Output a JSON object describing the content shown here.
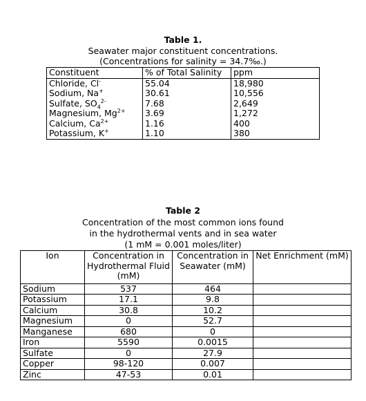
{
  "table1": {
    "title": "Table 1.",
    "subtitle": "Seawater major constituent concentrations.",
    "note": "(Concentrations for salinity = 34.7‰.)",
    "headers": [
      "Constituent",
      "% of Total Salinity",
      "ppm"
    ],
    "rows": [
      {
        "name": "Chloride, Cl",
        "charge": "-",
        "pct": "55.04",
        "ppm": "18,980"
      },
      {
        "name": "Sodium, Na",
        "charge": "+",
        "pct": "30.61",
        "ppm": "10,556"
      },
      {
        "name": "Sulfate, SO",
        "sub": "4",
        "charge": "2-",
        "pct": "7.68",
        "ppm": "2,649"
      },
      {
        "name": "Magnesium, Mg",
        "charge": "2+",
        "pct": "3.69",
        "ppm": "1,272"
      },
      {
        "name": "Calcium, Ca",
        "charge": "2+",
        "pct": "1.16",
        "ppm": "400"
      },
      {
        "name": "Potassium, K",
        "charge": "+",
        "pct": "1.10",
        "ppm": "380"
      }
    ]
  },
  "table2": {
    "title": "Table 2",
    "caption_line1": "Concentration of the most common ions found",
    "caption_line2": "in the hydrothermal vents and in sea water",
    "caption_line3": "(1 mM = 0.001 moles/liter)",
    "headers": [
      "Ion",
      "Concentration in Hydrothermal Fluid (mM)",
      "Concentration in Seawater (mM)",
      "Net Enrichment (mM)"
    ],
    "rows": [
      {
        "ion": "Sodium",
        "hydro": "537",
        "sea": "464",
        "net": ""
      },
      {
        "ion": "Potassium",
        "hydro": "17.1",
        "sea": "9.8",
        "net": ""
      },
      {
        "ion": "Calcium",
        "hydro": "30.8",
        "sea": "10.2",
        "net": ""
      },
      {
        "ion": "Magnesium",
        "hydro": "0",
        "sea": "52.7",
        "net": ""
      },
      {
        "ion": "Manganese",
        "hydro": "680",
        "sea": "0",
        "net": ""
      },
      {
        "ion": "Iron",
        "hydro": "5590",
        "sea": "0.0015",
        "net": ""
      },
      {
        "ion": "Sulfate",
        "hydro": "0",
        "sea": "27.9",
        "net": ""
      },
      {
        "ion": "Copper",
        "hydro": "98-120",
        "sea": "0.007",
        "net": ""
      },
      {
        "ion": "Zinc",
        "hydro": "47-53",
        "sea": "0.01",
        "net": ""
      }
    ]
  }
}
